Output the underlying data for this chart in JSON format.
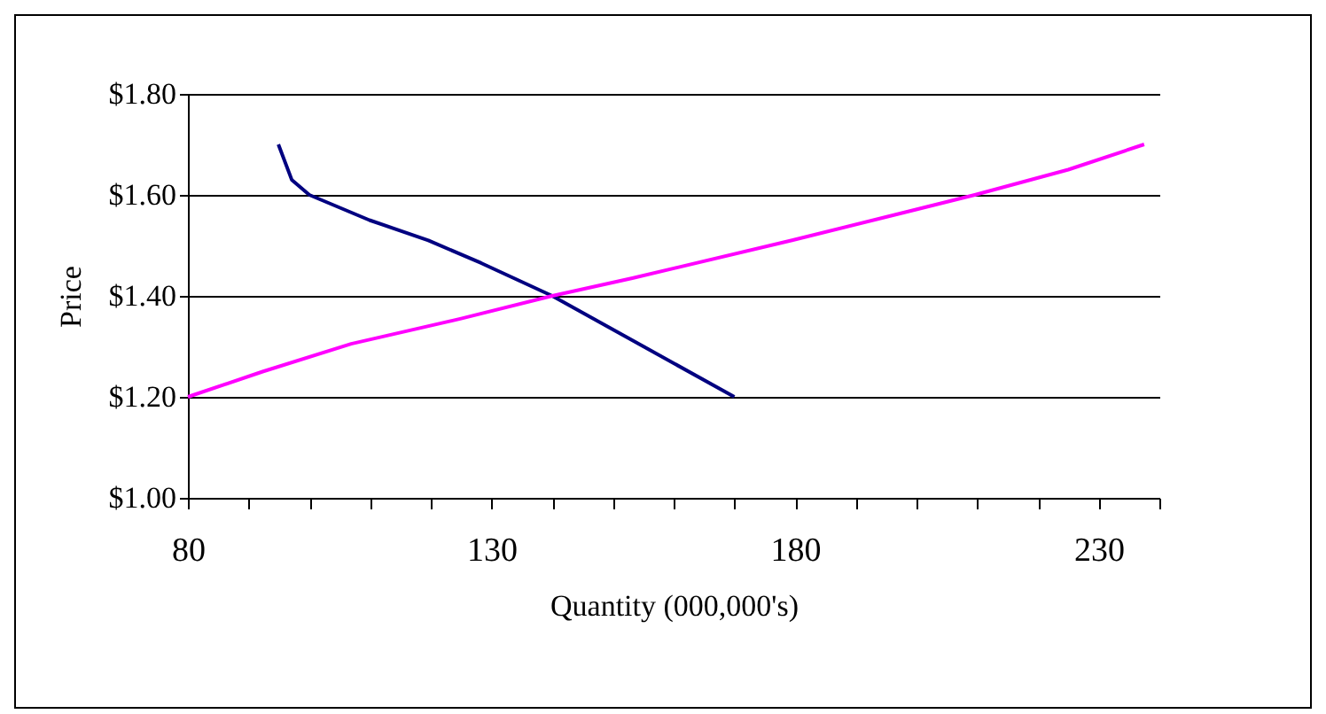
{
  "chart_data": {
    "type": "line",
    "xlabel": "Quantity (000,000's)",
    "ylabel": "Price",
    "series": [
      {
        "color": "#000080",
        "x": [
          94.9,
          97.1,
          100,
          109.9,
          119.6,
          128.3,
          140,
          155,
          170
        ],
        "values": [
          1.7,
          1.63,
          1.6,
          1.55,
          1.51,
          1.465,
          1.4,
          1.3,
          1.2
        ]
      },
      {
        "color": "#ff00ff",
        "x": [
          80,
          92.3,
          106.9,
          125,
          140,
          153.2,
          179.5,
          209.6,
          225,
          237.5
        ],
        "values": [
          1.2,
          1.25,
          1.305,
          1.355,
          1.4,
          1.435,
          1.51,
          1.6,
          1.65,
          1.7
        ]
      }
    ],
    "xlim": [
      80,
      240
    ],
    "xticks": [
      80,
      {
        "value": 90,
        "label": null
      },
      {
        "value": 100,
        "label": null
      },
      {
        "value": 110,
        "label": null
      },
      {
        "value": 120,
        "label": null
      },
      130,
      {
        "value": 140,
        "label": null
      },
      {
        "value": 150,
        "label": null
      },
      {
        "value": 160,
        "label": null
      },
      {
        "value": 170,
        "label": null
      },
      180,
      {
        "value": 190,
        "label": null
      },
      {
        "value": 200,
        "label": null
      },
      {
        "value": 210,
        "label": null
      },
      {
        "value": 220,
        "label": null
      },
      230,
      {
        "value": 240,
        "label": null
      }
    ],
    "ylim": [
      1.0,
      1.8
    ],
    "yticks": [
      {
        "value": 1.0,
        "label": "$1.00"
      },
      {
        "value": 1.2,
        "label": "$1.20"
      },
      {
        "value": 1.4,
        "label": "$1.40"
      },
      {
        "value": 1.6,
        "label": "$1.60"
      },
      {
        "value": 1.8,
        "label": "$1.80"
      }
    ],
    "grid": "y",
    "marker": "none",
    "line_style": "solid"
  }
}
